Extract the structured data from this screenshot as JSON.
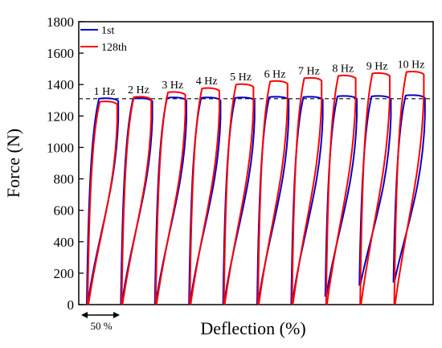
{
  "chart_data": {
    "type": "line",
    "title": "",
    "xlabel": "Deflection (%)",
    "ylabel": "Force (N)",
    "ylim": [
      0,
      1800
    ],
    "yticks": [
      0,
      200,
      400,
      600,
      800,
      1000,
      1200,
      1400,
      1600,
      1800
    ],
    "x_ticks_shown": false,
    "legend_position": "top-left",
    "reference_line": {
      "style": "dashed",
      "y": 1310
    },
    "scale_bar_label": "50 %",
    "frequency_labels": [
      "1 Hz",
      "2 Hz",
      "3 Hz",
      "4 Hz",
      "5 Hz",
      "6 Hz",
      "7 Hz",
      "8 Hz",
      "9 Hz",
      "10 Hz"
    ],
    "series": [
      {
        "name": "1st",
        "color": "#0000cc",
        "peak_force": [
          1310,
          1310,
          1315,
          1315,
          1315,
          1320,
          1320,
          1325,
          1325,
          1330
        ],
        "min_force": [
          0,
          0,
          0,
          0,
          0,
          0,
          0,
          50,
          120,
          140
        ]
      },
      {
        "name": "128th",
        "color": "#ff0000",
        "peak_force": [
          1290,
          1320,
          1350,
          1375,
          1400,
          1420,
          1440,
          1455,
          1470,
          1480
        ],
        "min_force": [
          0,
          0,
          0,
          0,
          0,
          0,
          0,
          0,
          0,
          0
        ]
      }
    ]
  }
}
